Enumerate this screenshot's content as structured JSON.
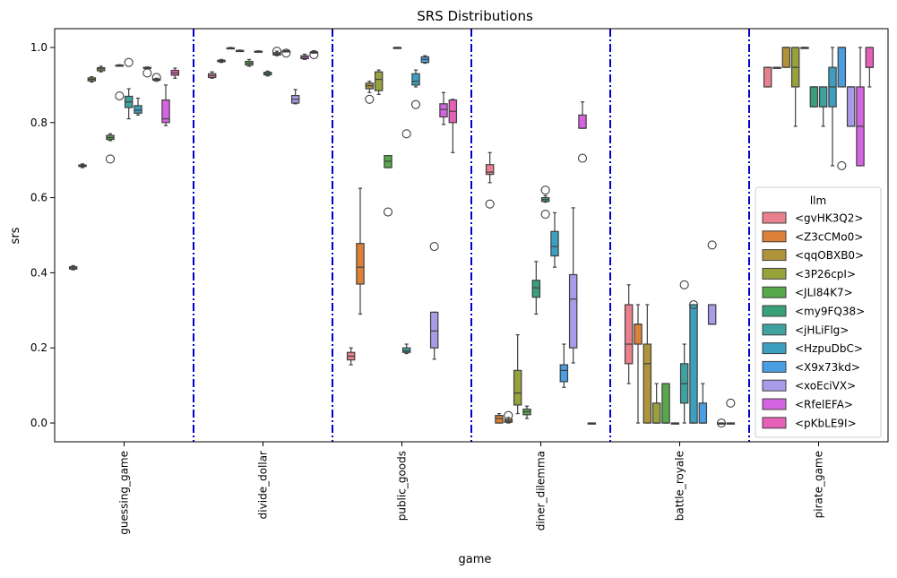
{
  "chart_data": {
    "type": "box",
    "title": "SRS Distributions",
    "xlabel": "game",
    "ylabel": "srs",
    "ylim": [
      -0.05,
      1.05
    ],
    "yticks": [
      "0.0",
      "0.2",
      "0.4",
      "0.6",
      "0.8",
      "1.0"
    ],
    "categories": [
      "guessing_game",
      "divide_dollar",
      "public_goods",
      "diner_dilemma",
      "battle_royale",
      "pirate_game"
    ],
    "separator_color": "#0000cc",
    "legend": {
      "title": "llm",
      "placement": "right",
      "entries": [
        "<gvHK3Q2>",
        "<Z3cCMo0>",
        "<qqOBXB0>",
        "<3P26cpI>",
        "<JLI84K7>",
        "<my9FQ38>",
        "<jHLiFlg>",
        "<HzpuDbC>",
        "<X9x73kd>",
        "<xoEciVX>",
        "<RfelEFA>",
        "<pKbLE9I>"
      ]
    },
    "series": [
      {
        "name": "<gvHK3Q2>",
        "color": "#e8808e",
        "boxes": [
          {
            "wl": 0.408,
            "q1": 0.41,
            "med": 0.413,
            "q3": 0.416,
            "wh": 0.419,
            "out": []
          },
          {
            "wl": 0.918,
            "q1": 0.92,
            "med": 0.925,
            "q3": 0.93,
            "wh": 0.935,
            "out": []
          },
          {
            "wl": 0.155,
            "q1": 0.168,
            "med": 0.178,
            "q3": 0.188,
            "wh": 0.2,
            "out": []
          },
          {
            "wl": 0.64,
            "q1": 0.662,
            "med": 0.668,
            "q3": 0.688,
            "wh": 0.72,
            "out": [
              0.583
            ]
          },
          {
            "wl": 0.105,
            "q1": 0.158,
            "med": 0.21,
            "q3": 0.315,
            "wh": 0.368,
            "out": []
          },
          {
            "wl": 0.895,
            "q1": 0.895,
            "med": 0.947,
            "q3": 0.947,
            "wh": 0.947,
            "out": []
          }
        ]
      },
      {
        "name": "<Z3cCMo0>",
        "color": "#dd8138",
        "boxes": [
          {
            "wl": 0.68,
            "q1": 0.683,
            "med": 0.685,
            "q3": 0.687,
            "wh": 0.69,
            "out": []
          },
          {
            "wl": 0.96,
            "q1": 0.962,
            "med": 0.964,
            "q3": 0.966,
            "wh": 0.968,
            "out": []
          },
          {
            "wl": 0.29,
            "q1": 0.37,
            "med": 0.415,
            "q3": 0.478,
            "wh": 0.625,
            "out": []
          },
          {
            "wl": 0.0,
            "q1": 0.0,
            "med": 0.012,
            "q3": 0.02,
            "wh": 0.025,
            "out": []
          },
          {
            "wl": 0.0,
            "q1": 0.21,
            "med": 0.263,
            "q3": 0.263,
            "wh": 0.315,
            "out": []
          },
          {
            "wl": 0.947,
            "q1": 0.947,
            "med": 0.947,
            "q3": 0.947,
            "wh": 0.947,
            "out": []
          }
        ]
      },
      {
        "name": "<qqOBXB0>",
        "color": "#b0943c",
        "boxes": [
          {
            "wl": 0.908,
            "q1": 0.911,
            "med": 0.915,
            "q3": 0.919,
            "wh": 0.922,
            "out": []
          },
          {
            "wl": 0.997,
            "q1": 0.997,
            "med": 0.998,
            "q3": 0.999,
            "wh": 1.0,
            "out": []
          },
          {
            "wl": 0.88,
            "q1": 0.89,
            "med": 0.898,
            "q3": 0.905,
            "wh": 0.91,
            "out": [
              0.862
            ]
          },
          {
            "wl": 0.0,
            "q1": 0.002,
            "med": 0.005,
            "q3": 0.01,
            "wh": 0.015,
            "out": [
              0.02
            ]
          },
          {
            "wl": 0.0,
            "q1": 0.0,
            "med": 0.158,
            "q3": 0.21,
            "wh": 0.315,
            "out": []
          },
          {
            "wl": 0.947,
            "q1": 0.947,
            "med": 1.0,
            "q3": 1.0,
            "wh": 1.0,
            "out": []
          }
        ]
      },
      {
        "name": "<3P26cpI>",
        "color": "#97a23b",
        "boxes": [
          {
            "wl": 0.935,
            "q1": 0.938,
            "med": 0.943,
            "q3": 0.946,
            "wh": 0.95,
            "out": []
          },
          {
            "wl": 0.99,
            "q1": 0.99,
            "med": 0.991,
            "q3": 0.992,
            "wh": 0.993,
            "out": []
          },
          {
            "wl": 0.875,
            "q1": 0.885,
            "med": 0.915,
            "q3": 0.935,
            "wh": 0.94,
            "out": []
          },
          {
            "wl": 0.025,
            "q1": 0.048,
            "med": 0.08,
            "q3": 0.14,
            "wh": 0.235,
            "out": []
          },
          {
            "wl": 0.0,
            "q1": 0.0,
            "med": 0.0,
            "q3": 0.053,
            "wh": 0.105,
            "out": []
          },
          {
            "wl": 0.79,
            "q1": 0.895,
            "med": 0.947,
            "q3": 1.0,
            "wh": 1.0,
            "out": []
          }
        ]
      },
      {
        "name": "<JLI84K7>",
        "color": "#56a84a",
        "boxes": [
          {
            "wl": 0.752,
            "q1": 0.755,
            "med": 0.76,
            "q3": 0.766,
            "wh": 0.77,
            "out": [
              0.703
            ]
          },
          {
            "wl": 0.95,
            "q1": 0.953,
            "med": 0.958,
            "q3": 0.963,
            "wh": 0.968,
            "out": []
          },
          {
            "wl": 0.68,
            "q1": 0.68,
            "med": 0.697,
            "q3": 0.712,
            "wh": 0.712,
            "out": [
              0.562
            ]
          },
          {
            "wl": 0.012,
            "q1": 0.022,
            "med": 0.03,
            "q3": 0.037,
            "wh": 0.045,
            "out": []
          },
          {
            "wl": 0.0,
            "q1": 0.0,
            "med": 0.0,
            "q3": 0.105,
            "wh": 0.105,
            "out": []
          },
          {
            "wl": 1.0,
            "q1": 1.0,
            "med": 1.0,
            "q3": 1.0,
            "wh": 1.0,
            "out": []
          }
        ]
      },
      {
        "name": "<my9FQ38>",
        "color": "#3aa079",
        "boxes": [
          {
            "wl": 0.95,
            "q1": 0.951,
            "med": 0.952,
            "q3": 0.953,
            "wh": 0.954,
            "out": [
              0.871
            ]
          },
          {
            "wl": 0.988,
            "q1": 0.988,
            "med": 0.989,
            "q3": 0.99,
            "wh": 0.991,
            "out": []
          },
          {
            "wl": 0.998,
            "q1": 0.999,
            "med": 1.0,
            "q3": 1.0,
            "wh": 1.0,
            "out": []
          },
          {
            "wl": 0.29,
            "q1": 0.335,
            "med": 0.36,
            "q3": 0.38,
            "wh": 0.43,
            "out": []
          },
          {
            "wl": 0.0,
            "q1": 0.0,
            "med": 0.0,
            "q3": 0.0,
            "wh": 0.0,
            "out": []
          },
          {
            "wl": 0.842,
            "q1": 0.842,
            "med": 0.895,
            "q3": 0.895,
            "wh": 0.895,
            "out": []
          }
        ]
      },
      {
        "name": "<jHLiFlg>",
        "color": "#3da2a0",
        "boxes": [
          {
            "wl": 0.81,
            "q1": 0.84,
            "med": 0.855,
            "q3": 0.87,
            "wh": 0.89,
            "out": [
              0.96
            ]
          },
          {
            "wl": 0.924,
            "q1": 0.927,
            "med": 0.93,
            "q3": 0.934,
            "wh": 0.937,
            "out": []
          },
          {
            "wl": 0.185,
            "q1": 0.188,
            "med": 0.192,
            "q3": 0.2,
            "wh": 0.21,
            "out": [
              0.77
            ]
          },
          {
            "wl": 0.588,
            "q1": 0.59,
            "med": 0.595,
            "q3": 0.6,
            "wh": 0.605,
            "out": [
              0.62,
              0.556
            ]
          },
          {
            "wl": 0.0,
            "q1": 0.053,
            "med": 0.105,
            "q3": 0.158,
            "wh": 0.21,
            "out": [
              0.368
            ]
          },
          {
            "wl": 0.79,
            "q1": 0.842,
            "med": 0.842,
            "q3": 0.895,
            "wh": 0.895,
            "out": []
          }
        ]
      },
      {
        "name": "<HzpuDbC>",
        "color": "#3c9fc0",
        "boxes": [
          {
            "wl": 0.82,
            "q1": 0.825,
            "med": 0.833,
            "q3": 0.845,
            "wh": 0.865,
            "out": []
          },
          {
            "wl": 0.978,
            "q1": 0.98,
            "med": 0.983,
            "q3": 0.986,
            "wh": 0.99,
            "out": [
              0.99
            ]
          },
          {
            "wl": 0.895,
            "q1": 0.9,
            "med": 0.91,
            "q3": 0.93,
            "wh": 0.94,
            "out": [
              0.848
            ]
          },
          {
            "wl": 0.415,
            "q1": 0.445,
            "med": 0.47,
            "q3": 0.51,
            "wh": 0.56,
            "out": []
          },
          {
            "wl": 0.0,
            "q1": 0.0,
            "med": 0.0,
            "q3": 0.315,
            "wh": 0.315,
            "out": [
              0.315
            ]
          },
          {
            "wl": 0.685,
            "q1": 0.842,
            "med": 0.895,
            "q3": 0.947,
            "wh": 1.0,
            "out": []
          }
        ]
      },
      {
        "name": "<X9x73kd>",
        "color": "#4a9ee2",
        "boxes": [
          {
            "wl": 0.944,
            "q1": 0.945,
            "med": 0.946,
            "q3": 0.947,
            "wh": 0.948,
            "out": [
              0.932
            ]
          },
          {
            "wl": 0.99,
            "q1": 0.99,
            "med": 0.99,
            "q3": 0.991,
            "wh": 0.992,
            "out": [
              0.985
            ]
          },
          {
            "wl": 0.958,
            "q1": 0.96,
            "med": 0.968,
            "q3": 0.975,
            "wh": 0.978,
            "out": []
          },
          {
            "wl": 0.095,
            "q1": 0.11,
            "med": 0.14,
            "q3": 0.155,
            "wh": 0.21,
            "out": []
          },
          {
            "wl": 0.0,
            "q1": 0.0,
            "med": 0.0,
            "q3": 0.053,
            "wh": 0.105,
            "out": []
          },
          {
            "wl": 0.895,
            "q1": 0.895,
            "med": 1.0,
            "q3": 1.0,
            "wh": 1.0,
            "out": [
              0.685
            ]
          }
        ]
      },
      {
        "name": "<xoEciVX>",
        "color": "#a99be8",
        "boxes": [
          {
            "wl": 0.913,
            "q1": 0.914,
            "med": 0.915,
            "q3": 0.916,
            "wh": 0.918,
            "out": [
              0.92
            ]
          },
          {
            "wl": 0.85,
            "q1": 0.852,
            "med": 0.862,
            "q3": 0.872,
            "wh": 0.888,
            "out": []
          },
          {
            "wl": 0.17,
            "q1": 0.2,
            "med": 0.245,
            "q3": 0.295,
            "wh": 0.295,
            "out": [
              0.47
            ]
          },
          {
            "wl": 0.16,
            "q1": 0.2,
            "med": 0.33,
            "q3": 0.395,
            "wh": 0.573,
            "out": []
          },
          {
            "wl": 0.263,
            "q1": 0.263,
            "med": 0.263,
            "q3": 0.315,
            "wh": 0.315,
            "out": [
              0.474
            ]
          },
          {
            "wl": 0.79,
            "q1": 0.79,
            "med": 0.895,
            "q3": 0.895,
            "wh": 0.895,
            "out": []
          }
        ]
      },
      {
        "name": "<RfelEFA>",
        "color": "#d564e2",
        "boxes": [
          {
            "wl": 0.792,
            "q1": 0.8,
            "med": 0.81,
            "q3": 0.86,
            "wh": 0.9,
            "out": []
          },
          {
            "wl": 0.968,
            "q1": 0.97,
            "med": 0.974,
            "q3": 0.978,
            "wh": 0.982,
            "out": []
          },
          {
            "wl": 0.795,
            "q1": 0.815,
            "med": 0.835,
            "q3": 0.85,
            "wh": 0.88,
            "out": []
          },
          {
            "wl": 0.785,
            "q1": 0.785,
            "med": 0.785,
            "q3": 0.82,
            "wh": 0.855,
            "out": [
              0.705
            ]
          },
          {
            "wl": 0.0,
            "q1": 0.0,
            "med": 0.0,
            "q3": 0.0,
            "wh": 0.0,
            "out": [
              0.0
            ]
          },
          {
            "wl": 0.685,
            "q1": 0.685,
            "med": 0.79,
            "q3": 0.895,
            "wh": 1.0,
            "out": []
          }
        ]
      },
      {
        "name": "<pKbLE9I>",
        "color": "#e660b8",
        "boxes": [
          {
            "wl": 0.918,
            "q1": 0.926,
            "med": 0.932,
            "q3": 0.939,
            "wh": 0.945,
            "out": []
          },
          {
            "wl": 0.985,
            "q1": 0.986,
            "med": 0.987,
            "q3": 0.988,
            "wh": 0.989,
            "out": [
              0.981
            ]
          },
          {
            "wl": 0.72,
            "q1": 0.8,
            "med": 0.83,
            "q3": 0.86,
            "wh": 0.862,
            "out": []
          },
          {
            "wl": 0.0,
            "q1": 0.0,
            "med": 0.0,
            "q3": 0.0,
            "wh": 0.0,
            "out": []
          },
          {
            "wl": 0.0,
            "q1": 0.0,
            "med": 0.0,
            "q3": 0.0,
            "wh": 0.0,
            "out": [
              0.053
            ]
          },
          {
            "wl": 0.895,
            "q1": 0.947,
            "med": 0.947,
            "q3": 1.0,
            "wh": 1.0,
            "out": []
          }
        ]
      }
    ]
  }
}
